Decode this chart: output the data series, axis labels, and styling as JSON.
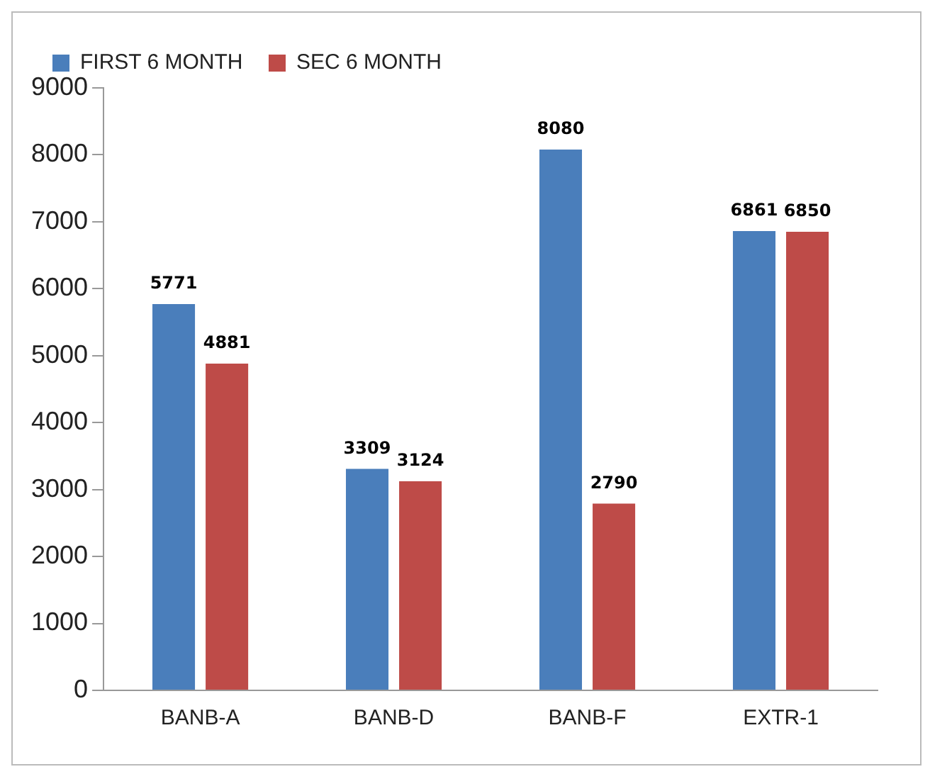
{
  "chart_data": {
    "type": "bar",
    "categories": [
      "BANB-A",
      "BANB-D",
      "BANB-F",
      "EXTR-1"
    ],
    "series": [
      {
        "name": "FIRST 6 MONTH",
        "color": "#4a7ebb",
        "values": [
          5771,
          3309,
          8080,
          6861
        ]
      },
      {
        "name": "SEC 6 MONTH",
        "color": "#be4b48",
        "values": [
          4881,
          3124,
          2790,
          6850
        ]
      }
    ],
    "ylim": [
      0,
      9000
    ],
    "yticks": [
      0,
      1000,
      2000,
      3000,
      4000,
      5000,
      6000,
      7000,
      8000,
      9000
    ],
    "grid": false,
    "legend": "top left",
    "data_labels": true
  }
}
